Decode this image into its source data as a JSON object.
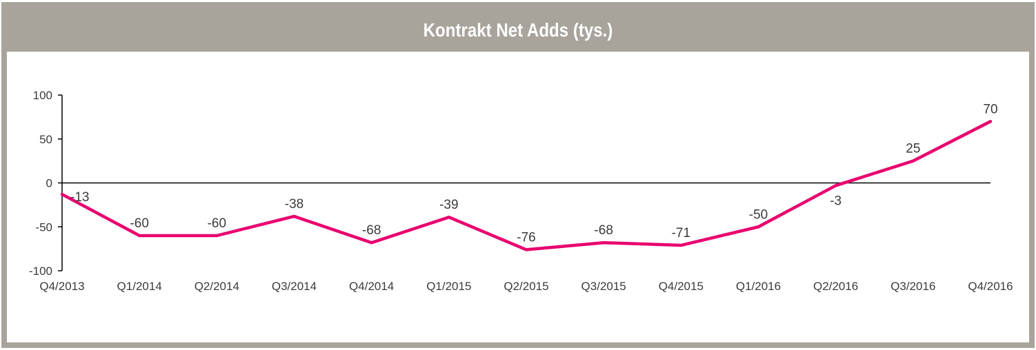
{
  "chart_data": {
    "type": "line",
    "title": "Kontrakt Net Adds (tys.)",
    "xlabel": "",
    "ylabel": "",
    "categories": [
      "Q4/2013",
      "Q1/2014",
      "Q2/2014",
      "Q3/2014",
      "Q4/2014",
      "Q1/2015",
      "Q2/2015",
      "Q3/2015",
      "Q4/2015",
      "Q1/2016",
      "Q2/2016",
      "Q3/2016",
      "Q4/2016"
    ],
    "series": [
      {
        "values": [
          -13,
          -60,
          -60,
          -38,
          -68,
          -39,
          -76,
          -68,
          -71,
          -50,
          -3,
          25,
          70
        ],
        "labels": [
          "-13",
          "-60",
          "-60",
          "-38",
          "-68",
          "-39",
          "-76",
          "-68",
          "-71",
          "-50",
          "-3",
          "25",
          "70"
        ],
        "color": "#e8006e"
      }
    ],
    "ylim": [
      -100,
      100
    ],
    "yticks": [
      100,
      50,
      0,
      -50,
      -100
    ],
    "ytick_labels": [
      "100",
      "50",
      "0",
      "-50",
      "-100"
    ],
    "grid": false,
    "legend": "none"
  },
  "colors": {
    "header_background": "#a8a49b",
    "line": "#e8006e",
    "axis": "#000000",
    "text": "#3a3a3a"
  }
}
